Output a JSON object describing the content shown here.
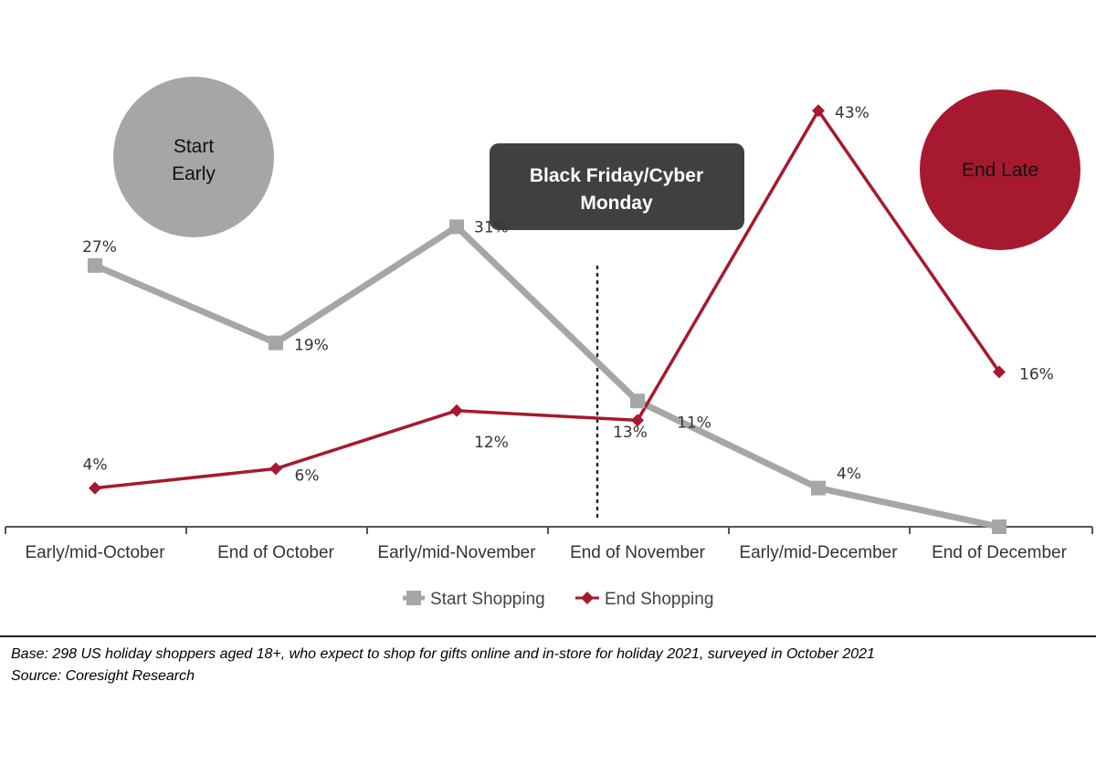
{
  "chart_data": {
    "type": "line",
    "categories": [
      "Early/mid-October",
      "End of October",
      "Early/mid-November",
      "End of November",
      "Early/mid-December",
      "End of December"
    ],
    "series": [
      {
        "name": "Start Shopping",
        "values": [
          27,
          19,
          31,
          13,
          4,
          0
        ],
        "labels": [
          "27%",
          "19%",
          "31%",
          "13%",
          "4%",
          ""
        ],
        "color": "#a6a6a6",
        "marker": "square"
      },
      {
        "name": "End Shopping",
        "values": [
          4,
          6,
          12,
          11,
          43,
          16
        ],
        "labels": [
          "4%",
          "6%",
          "12%",
          "11%",
          "43%",
          "16%"
        ],
        "color": "#a6192e",
        "marker": "diamond"
      }
    ],
    "ylim": [
      0,
      50
    ],
    "grid": false,
    "legend": "bottom-center",
    "annotations": {
      "start_early": {
        "line1": "Start",
        "line2": "Early",
        "color": "#a6a6a6"
      },
      "end_late": {
        "text": "End Late",
        "color": "#a6192e"
      },
      "event_box": {
        "line1": "Black Friday/Cyber",
        "line2": "Monday",
        "color": "#404040"
      },
      "event_divider": "dotted line between Early/mid-November and End of November"
    }
  },
  "footnote": {
    "base": "Base: 298 US holiday shoppers aged 18+, who expect to shop for gifts online and in-store for holiday 2021, surveyed in October 2021",
    "source": "Source: Coresight Research"
  }
}
